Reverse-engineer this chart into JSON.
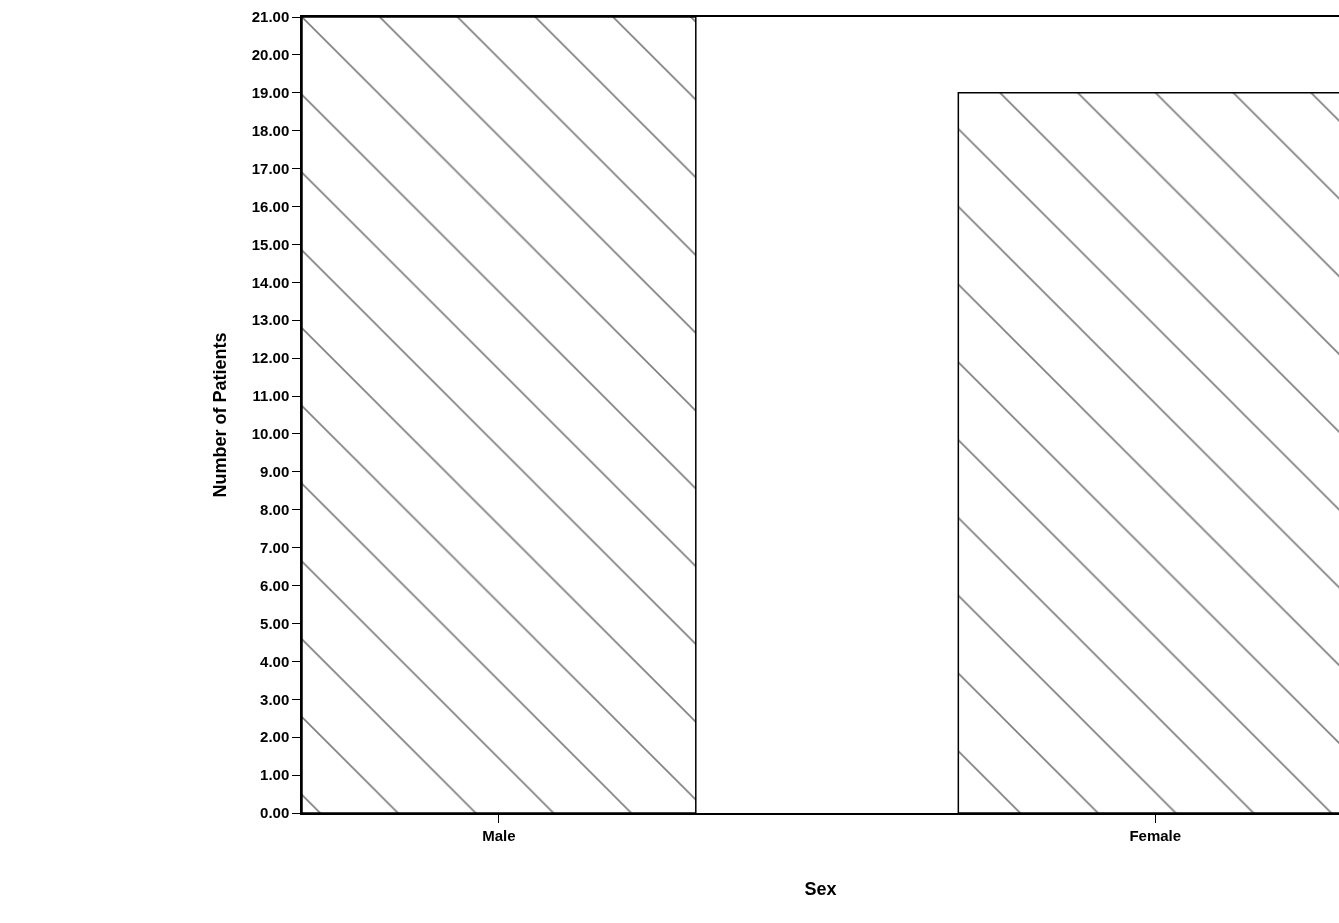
{
  "chart_data": {
    "type": "bar",
    "xlabel": "Sex",
    "ylabel": "Number of Patients",
    "categories": [
      "Male",
      "Female"
    ],
    "values": [
      21,
      19
    ],
    "color": "#000000",
    "legend": false,
    "ylim": [
      0,
      21
    ],
    "yticks": [
      {
        "value": 0,
        "label": "0.00"
      },
      {
        "value": 1,
        "label": "1.00"
      },
      {
        "value": 2,
        "label": "2.00"
      },
      {
        "value": 3,
        "label": "3.00"
      },
      {
        "value": 4,
        "label": "4.00"
      },
      {
        "value": 5,
        "label": "5.00"
      },
      {
        "value": 6,
        "label": "6.00"
      },
      {
        "value": 7,
        "label": "7.00"
      },
      {
        "value": 8,
        "label": "8.00"
      },
      {
        "value": 9,
        "label": "9.00"
      },
      {
        "value": 10,
        "label": "10.00"
      },
      {
        "value": 11,
        "label": "11.00"
      },
      {
        "value": 12,
        "label": "12.00"
      },
      {
        "value": 13,
        "label": "13.00"
      },
      {
        "value": 14,
        "label": "14.00"
      },
      {
        "value": 15,
        "label": "15.00"
      },
      {
        "value": 16,
        "label": "16.00"
      },
      {
        "value": 17,
        "label": "17.00"
      },
      {
        "value": 18,
        "label": "18.00"
      },
      {
        "value": 19,
        "label": "19.00"
      },
      {
        "value": 20,
        "label": "20.00"
      },
      {
        "value": 21,
        "label": "21.00"
      }
    ],
    "tick_labels": null
  }
}
